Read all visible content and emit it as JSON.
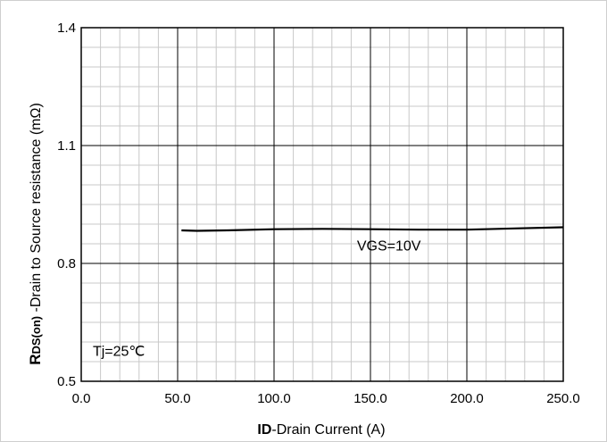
{
  "chart_data": {
    "type": "line",
    "xlabel_bold": "ID",
    "xlabel_rest": "-Drain Current (A)",
    "ylabel_bold_r": "R",
    "ylabel_bold_sub": "DS(on)",
    "ylabel_rest": " -Drain to Source resistance (mΩ)",
    "xlim": [
      0,
      250
    ],
    "ylim": [
      0.5,
      1.4
    ],
    "x_ticks": [
      0,
      50,
      100,
      150,
      200,
      250
    ],
    "x_tick_labels": [
      "0.0",
      "50.0",
      "100.0",
      "150.0",
      "200.0",
      "250.0"
    ],
    "y_ticks": [
      0.5,
      0.8,
      1.1,
      1.4
    ],
    "y_tick_labels": [
      "0.5",
      "0.8",
      "1.1",
      "1.4"
    ],
    "minor_x_step": 10,
    "minor_y_step": 0.05,
    "grid": true,
    "series": [
      {
        "x": [
          52,
          60,
          75,
          100,
          125,
          150,
          175,
          200,
          225,
          250
        ],
        "y": [
          0.884,
          0.883,
          0.884,
          0.887,
          0.888,
          0.887,
          0.886,
          0.886,
          0.889,
          0.892
        ]
      }
    ],
    "annotations": [
      {
        "text": "VGS=10V",
        "x": 143,
        "y": 0.833
      },
      {
        "text": "Tj=25℃",
        "x": 6,
        "y": 0.565
      }
    ],
    "line_color": "#000000"
  }
}
